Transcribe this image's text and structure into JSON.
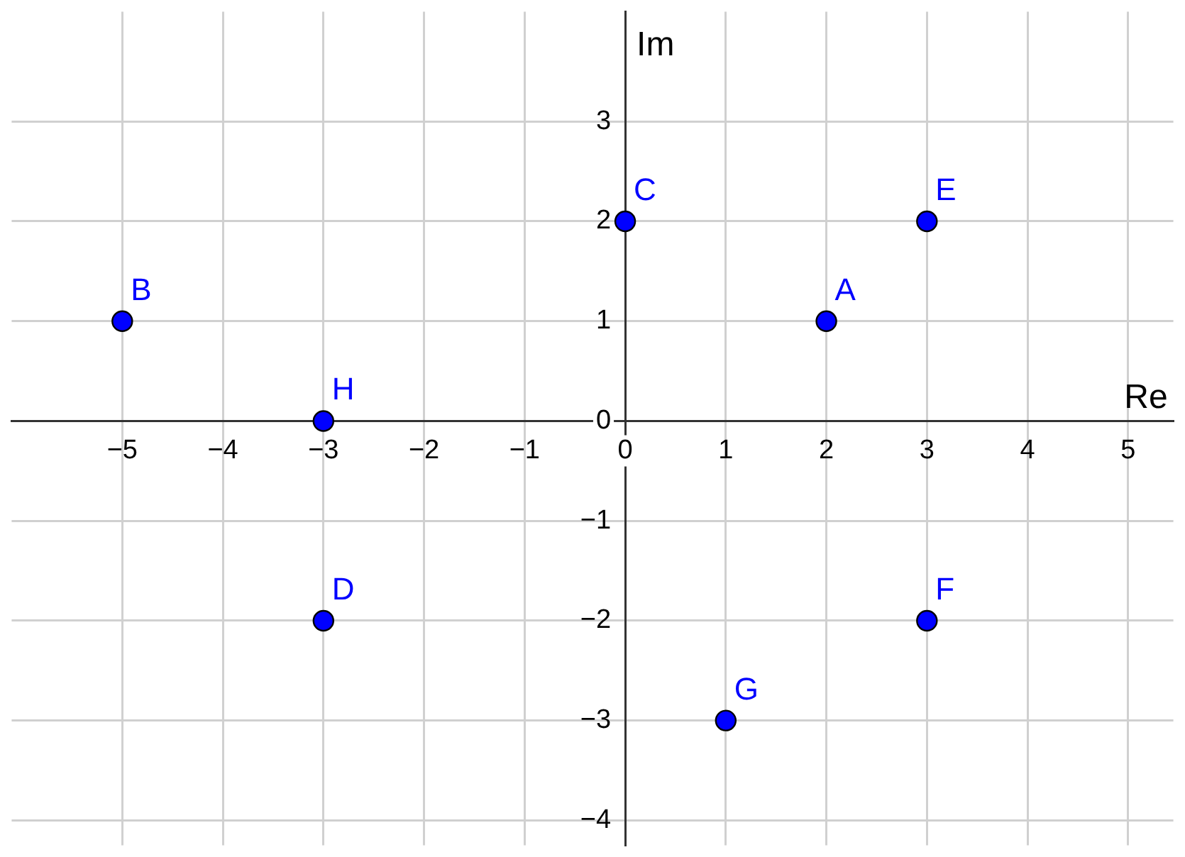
{
  "chart_data": {
    "type": "scatter",
    "xlabel": "Re",
    "ylabel": "Im",
    "x": [
      2,
      -5,
      0,
      -3,
      3,
      3,
      1,
      -3
    ],
    "values": [
      1,
      1,
      2,
      -2,
      2,
      -2,
      -3,
      0
    ],
    "value_labels": [
      "A",
      "B",
      "C",
      "D",
      "E",
      "F",
      "G",
      "H"
    ],
    "color": "#0000ff",
    "marker": "circle",
    "grid": true,
    "xlim": [
      -6.1,
      5.45
    ],
    "ylim": [
      -4.25,
      4.1
    ],
    "xticks": [
      -5,
      -4,
      -3,
      -2,
      -1,
      0,
      1,
      2,
      3,
      4,
      5
    ],
    "yticks": [
      -4,
      -3,
      -2,
      -1,
      0,
      1,
      2,
      3
    ]
  }
}
